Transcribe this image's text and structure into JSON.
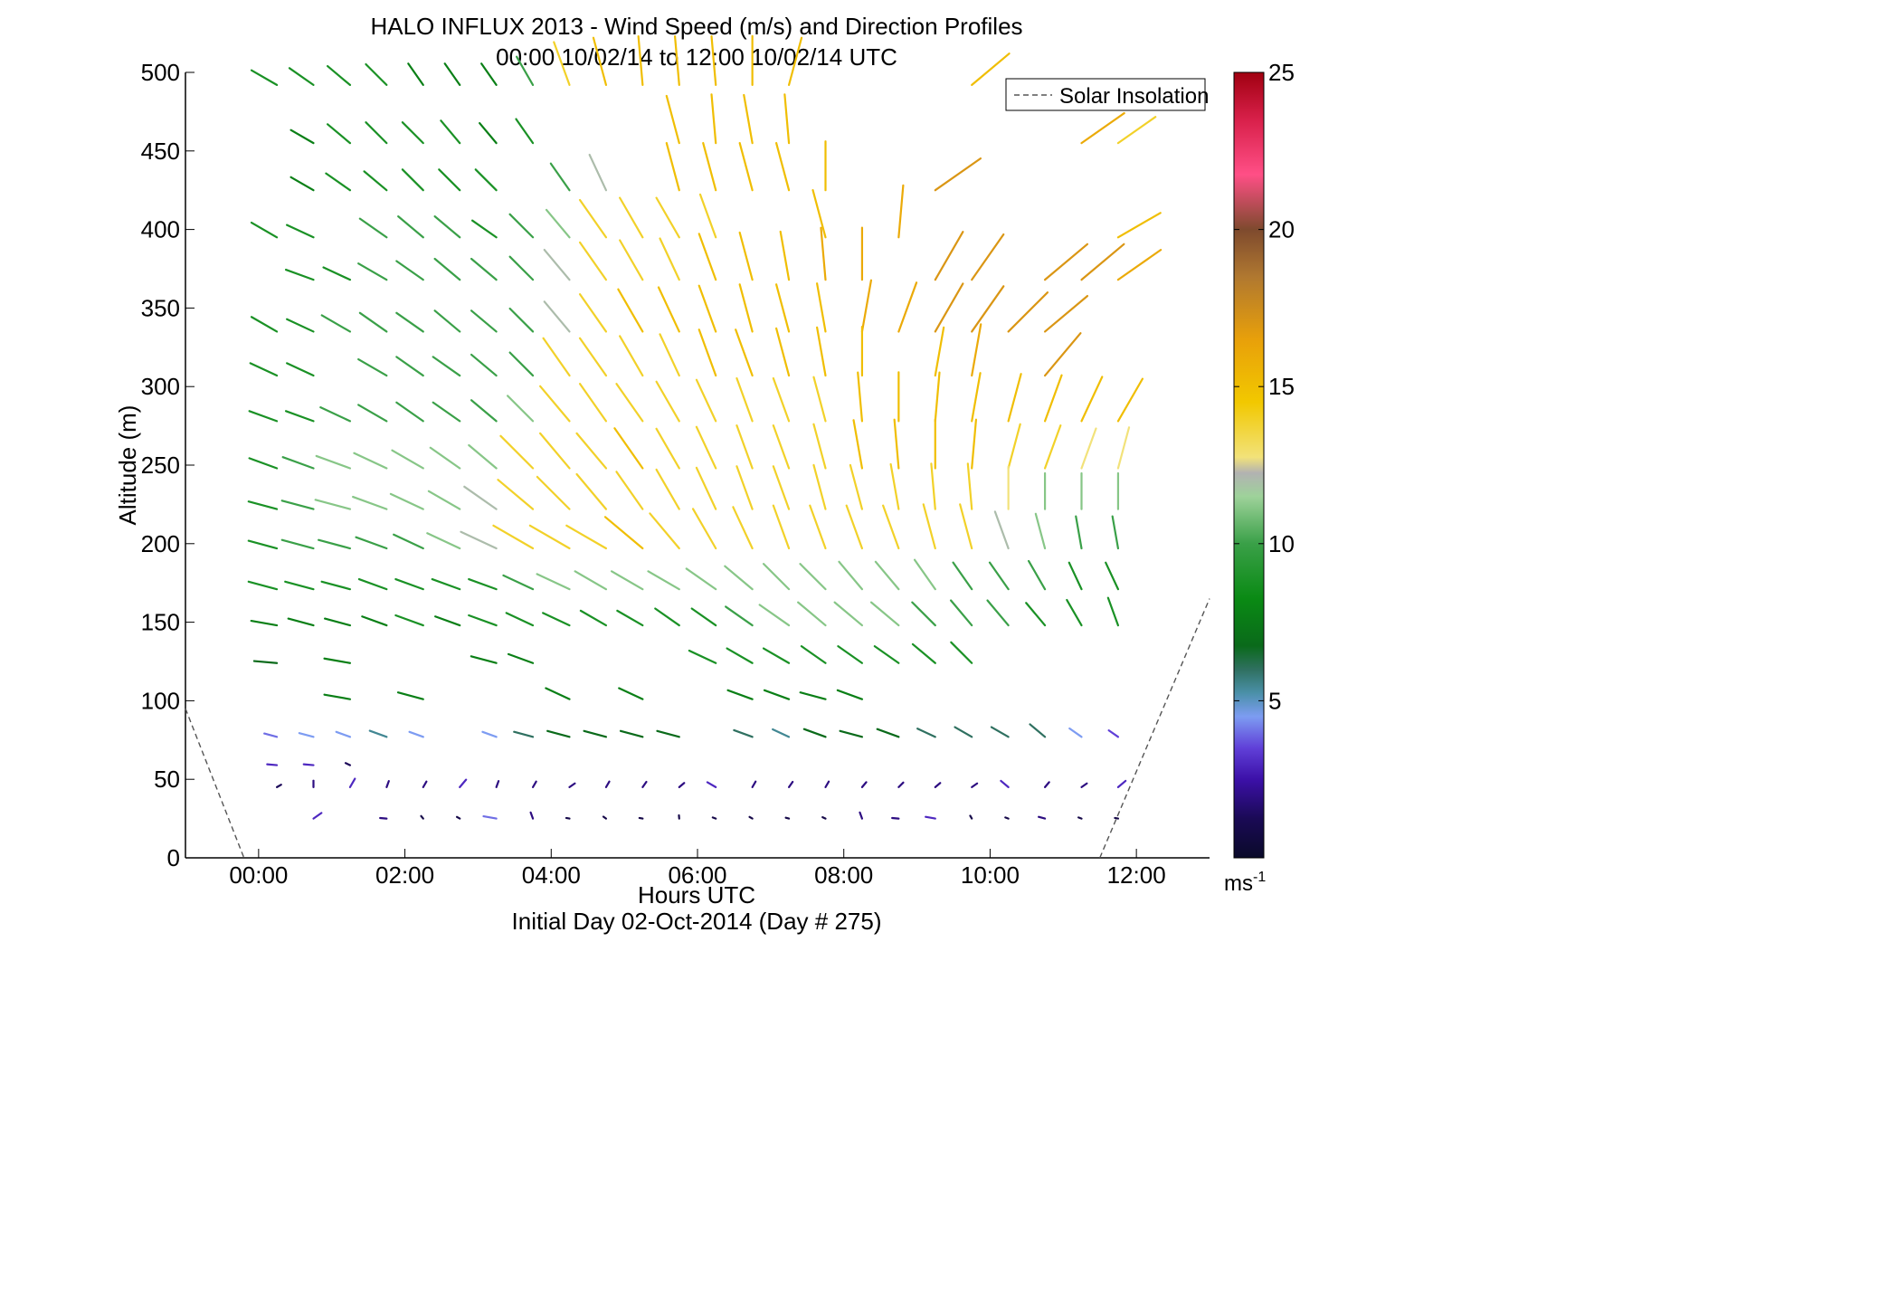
{
  "chart_data": {
    "type": "quiver",
    "title": "HALO INFLUX 2013 - Wind Speed (m/s) and Direction Profiles",
    "subtitle": "00:00 10/02/14 to 12:00 10/02/14  UTC",
    "xlabel": "Hours UTC",
    "xlabel2": "Initial Day 02-Oct-2014 (Day # 275)",
    "ylabel": "Altitude (m)",
    "xlim": [
      -1.0,
      13.0
    ],
    "ylim": [
      0,
      500
    ],
    "xticks": [
      0,
      2,
      4,
      6,
      8,
      10,
      12
    ],
    "xtick_labels": [
      "00:00",
      "02:00",
      "04:00",
      "06:00",
      "08:00",
      "10:00",
      "12:00"
    ],
    "yticks": [
      0,
      50,
      100,
      150,
      200,
      250,
      300,
      350,
      400,
      450,
      500
    ],
    "ytick_labels": [
      "0",
      "50",
      "100",
      "150",
      "200",
      "250",
      "300",
      "350",
      "400",
      "450",
      "500"
    ],
    "colorbar": {
      "min": 0,
      "max": 25,
      "ticks": [
        5,
        10,
        15,
        20,
        25
      ],
      "tick_labels": [
        "5",
        "10",
        "15",
        "20",
        "25"
      ],
      "unit": "ms",
      "unit_exp": "-1"
    },
    "legend": {
      "label": "Solar Insolation",
      "position": "top-right"
    },
    "solar_insolation": [
      {
        "x": -1.0,
        "y": 95
      },
      {
        "x": -0.2,
        "y": 0
      },
      {
        "x": 11.5,
        "y": 0
      },
      {
        "x": 13.0,
        "y": 165
      }
    ],
    "grid": false,
    "rows": [
      {
        "alt": 492,
        "speed": [
          9,
          9,
          9,
          9,
          8,
          8,
          8,
          10,
          14,
          15,
          15,
          15,
          15,
          15,
          15,
          null,
          null,
          null,
          null,
          15,
          null,
          null,
          null,
          null
        ],
        "dir": [
          120,
          125,
          130,
          135,
          145,
          145,
          145,
          150,
          160,
          165,
          175,
          175,
          175,
          180,
          195,
          null,
          null,
          null,
          null,
          230,
          null,
          null,
          null,
          null
        ]
      },
      {
        "alt": 455,
        "speed": [
          null,
          8,
          9,
          9,
          9,
          9,
          8,
          9,
          null,
          null,
          null,
          15,
          15,
          15,
          15,
          null,
          null,
          null,
          null,
          null,
          null,
          null,
          16,
          14
        ],
        "dir": [
          null,
          120,
          130,
          135,
          135,
          140,
          140,
          145,
          null,
          null,
          null,
          165,
          175,
          170,
          175,
          null,
          null,
          null,
          null,
          null,
          null,
          null,
          235,
          235
        ]
      },
      {
        "alt": 425,
        "speed": [
          null,
          8,
          9,
          9,
          9,
          9,
          9,
          null,
          10,
          12,
          null,
          15,
          15,
          15,
          15,
          15,
          null,
          null,
          17,
          null,
          null,
          null,
          null,
          null
        ],
        "dir": [
          null,
          120,
          125,
          130,
          135,
          135,
          135,
          null,
          145,
          155,
          null,
          165,
          165,
          165,
          165,
          180,
          null,
          null,
          235,
          null,
          null,
          null,
          null,
          null
        ]
      },
      {
        "alt": 395,
        "speed": [
          9,
          9,
          null,
          10,
          10,
          10,
          9,
          10,
          11,
          14,
          14,
          14,
          14,
          null,
          null,
          15,
          null,
          16,
          null,
          null,
          null,
          null,
          null,
          15
        ],
        "dir": [
          120,
          115,
          null,
          125,
          130,
          130,
          125,
          135,
          140,
          145,
          150,
          150,
          160,
          null,
          null,
          165,
          null,
          185,
          null,
          null,
          null,
          null,
          null,
          240
        ]
      },
      {
        "alt": 368,
        "speed": [
          null,
          9,
          9,
          10,
          10,
          10,
          10,
          10,
          12,
          14,
          14,
          14,
          15,
          15,
          15,
          16,
          16,
          null,
          17,
          17,
          null,
          17,
          17,
          16
        ],
        "dir": [
          null,
          110,
          115,
          120,
          125,
          130,
          130,
          135,
          140,
          145,
          150,
          155,
          160,
          165,
          170,
          175,
          180,
          null,
          210,
          215,
          null,
          230,
          230,
          235
        ]
      },
      {
        "alt": 335,
        "speed": [
          9,
          9,
          10,
          10,
          10,
          10,
          10,
          10,
          12,
          14,
          15,
          15,
          15,
          15,
          15,
          15,
          16,
          16,
          17,
          17,
          17,
          17,
          null,
          null
        ],
        "dir": [
          120,
          115,
          120,
          125,
          125,
          130,
          130,
          135,
          140,
          145,
          150,
          155,
          160,
          165,
          165,
          170,
          190,
          200,
          210,
          215,
          225,
          230,
          null,
          null
        ]
      },
      {
        "alt": 307,
        "speed": [
          9,
          9,
          null,
          10,
          10,
          10,
          10,
          10,
          14,
          14,
          14,
          14,
          15,
          15,
          15,
          15,
          15,
          null,
          15,
          16,
          null,
          17,
          null,
          null
        ],
        "dir": [
          115,
          115,
          null,
          120,
          125,
          125,
          130,
          135,
          145,
          145,
          150,
          155,
          160,
          160,
          165,
          170,
          180,
          null,
          190,
          190,
          null,
          220,
          null,
          null
        ]
      },
      {
        "alt": 278,
        "speed": [
          9,
          9,
          10,
          10,
          10,
          10,
          10,
          11,
          14,
          14,
          14,
          14,
          14,
          14,
          14,
          14,
          15,
          15,
          15,
          15,
          15,
          15,
          15,
          15
        ],
        "dir": [
          110,
          110,
          115,
          120,
          125,
          125,
          130,
          135,
          140,
          145,
          145,
          150,
          155,
          160,
          160,
          165,
          175,
          180,
          185,
          190,
          195,
          200,
          205,
          210
        ]
      },
      {
        "alt": 248,
        "speed": [
          9,
          10,
          11,
          11,
          11,
          11,
          11,
          14,
          14,
          14,
          15,
          14,
          14,
          14,
          14,
          14,
          15,
          15,
          15,
          15,
          14,
          14,
          13,
          13
        ],
        "dir": [
          110,
          110,
          110,
          115,
          120,
          125,
          130,
          135,
          140,
          140,
          145,
          150,
          155,
          160,
          160,
          165,
          170,
          175,
          180,
          185,
          195,
          200,
          200,
          195
        ]
      },
      {
        "alt": 222,
        "speed": [
          9,
          10,
          11,
          11,
          11,
          11,
          12,
          14,
          14,
          14,
          14,
          14,
          14,
          14,
          14,
          14,
          14,
          14,
          14,
          14,
          13,
          11,
          11,
          11
        ],
        "dir": [
          105,
          105,
          105,
          110,
          115,
          120,
          125,
          130,
          135,
          140,
          145,
          150,
          155,
          160,
          160,
          165,
          165,
          170,
          175,
          175,
          180,
          180,
          180,
          180
        ]
      },
      {
        "alt": 197,
        "speed": [
          9,
          10,
          10,
          10,
          10,
          11,
          12,
          14,
          14,
          14,
          15,
          14,
          14,
          14,
          14,
          14,
          14,
          14,
          14,
          14,
          12,
          11,
          10,
          10
        ],
        "dir": [
          105,
          105,
          105,
          110,
          115,
          115,
          115,
          120,
          120,
          120,
          130,
          140,
          150,
          155,
          160,
          160,
          160,
          160,
          165,
          165,
          160,
          165,
          170,
          170
        ]
      },
      {
        "alt": 171,
        "speed": [
          9,
          9,
          9,
          9,
          9,
          9,
          9,
          10,
          11,
          11,
          11,
          11,
          11,
          11,
          11,
          11,
          11,
          11,
          11,
          10,
          10,
          10,
          9,
          9
        ],
        "dir": [
          105,
          105,
          105,
          110,
          110,
          110,
          110,
          115,
          115,
          120,
          120,
          120,
          125,
          130,
          135,
          135,
          140,
          140,
          145,
          145,
          145,
          150,
          155,
          155
        ]
      },
      {
        "alt": 148,
        "speed": [
          8,
          8,
          8,
          8,
          9,
          8,
          9,
          9,
          9,
          9,
          9,
          9,
          9,
          10,
          11,
          11,
          11,
          11,
          10,
          10,
          10,
          9,
          9,
          9
        ],
        "dir": [
          100,
          105,
          105,
          110,
          110,
          110,
          110,
          115,
          115,
          120,
          120,
          125,
          125,
          125,
          125,
          130,
          130,
          130,
          135,
          140,
          140,
          140,
          150,
          160
        ]
      },
      {
        "alt": 124,
        "speed": [
          7,
          null,
          8,
          null,
          null,
          null,
          8,
          8,
          null,
          null,
          null,
          null,
          9,
          9,
          9,
          9,
          9,
          9,
          9,
          9,
          null,
          null,
          null,
          null
        ],
        "dir": [
          95,
          null,
          100,
          null,
          null,
          null,
          105,
          110,
          null,
          null,
          null,
          null,
          115,
          120,
          120,
          125,
          125,
          125,
          130,
          135,
          null,
          null,
          null,
          null
        ]
      },
      {
        "alt": 101,
        "speed": [
          null,
          null,
          8,
          null,
          8,
          null,
          null,
          null,
          8,
          null,
          8,
          null,
          null,
          8,
          8,
          8,
          8,
          null,
          null,
          null,
          null,
          null,
          null,
          null
        ],
        "dir": [
          null,
          null,
          100,
          null,
          105,
          null,
          null,
          null,
          115,
          null,
          115,
          null,
          null,
          110,
          110,
          105,
          110,
          null,
          null,
          null,
          null,
          null,
          null,
          null
        ]
      },
      {
        "alt": 77,
        "speed": [
          4,
          4.5,
          4.5,
          5.5,
          4.5,
          null,
          4.5,
          6,
          7,
          7,
          7,
          7,
          null,
          6,
          5.5,
          7,
          7,
          7,
          6,
          6,
          6,
          6,
          4.5,
          3.5
        ],
        "dir": [
          105,
          105,
          110,
          110,
          110,
          null,
          110,
          105,
          105,
          105,
          105,
          105,
          null,
          110,
          115,
          110,
          105,
          110,
          115,
          120,
          120,
          130,
          125,
          125
        ]
      },
      {
        "alt": 59,
        "speed": [
          3,
          3,
          1.5,
          null,
          null,
          null,
          null,
          null,
          null,
          null,
          null,
          null,
          null,
          null,
          null,
          null,
          null,
          null,
          null,
          null,
          null,
          null,
          null,
          null
        ],
        "dir": [
          95,
          95,
          115,
          null,
          null,
          null,
          null,
          null,
          null,
          null,
          null,
          null,
          null,
          null,
          null,
          null,
          null,
          null,
          null,
          null,
          null,
          null,
          null,
          null
        ]
      },
      {
        "alt": 45,
        "speed": [
          1.5,
          2,
          3,
          2,
          2,
          3,
          2,
          2,
          2,
          2,
          2,
          2,
          3,
          2,
          2,
          2,
          2,
          2,
          2,
          2,
          3,
          2,
          2,
          3
        ],
        "dir": [
          240,
          180,
          210,
          200,
          210,
          220,
          200,
          210,
          235,
          210,
          215,
          230,
          120,
          210,
          215,
          210,
          220,
          225,
          230,
          235,
          130,
          220,
          235,
          230
        ]
      },
      {
        "alt": 25,
        "speed": [
          null,
          3,
          null,
          2,
          1,
          1,
          4,
          2,
          1,
          1,
          1,
          1,
          1,
          1,
          1,
          1,
          2,
          2,
          3,
          1,
          1,
          2,
          1,
          1
        ],
        "dir": [
          null,
          235,
          null,
          95,
          140,
          120,
          100,
          160,
          100,
          125,
          100,
          175,
          110,
          120,
          105,
          115,
          160,
          95,
          100,
          150,
          110,
          105,
          110,
          100
        ]
      }
    ],
    "row_times_hours": [
      0.25,
      0.75,
      1.25,
      1.75,
      2.25,
      2.75,
      3.25,
      3.75,
      4.25,
      4.75,
      5.25,
      5.75,
      6.25,
      6.75,
      7.25,
      7.75,
      8.25,
      8.75,
      9.25,
      9.75,
      10.25,
      10.75,
      11.25,
      11.75
    ]
  }
}
